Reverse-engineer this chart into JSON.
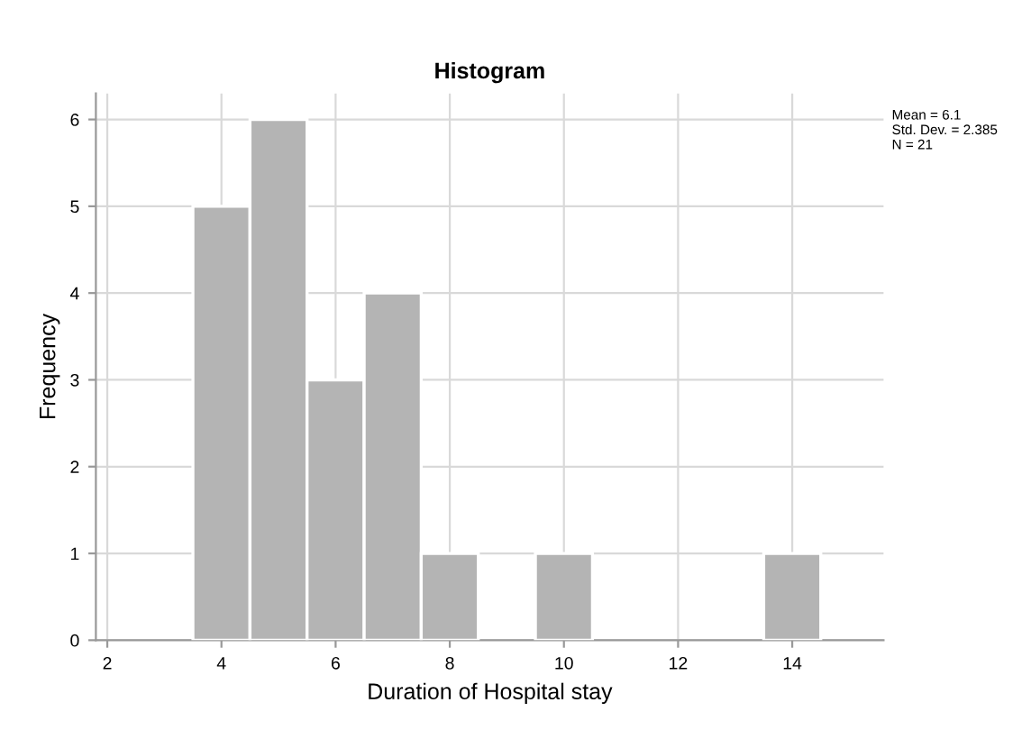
{
  "chart_data": {
    "type": "histogram",
    "title": "Histogram",
    "xlabel": "Duration of Hospital stay",
    "ylabel": "Frequency",
    "bins": [
      3.5,
      4.5,
      5.5,
      6.5,
      7.5,
      8.5,
      9.5,
      10.5,
      11.5,
      12.5,
      13.5,
      14.5
    ],
    "values": [
      5,
      6,
      3,
      4,
      1,
      0,
      1,
      0,
      0,
      0,
      1
    ],
    "color": "#b4b4b4",
    "xlim": [
      1.8,
      15.6
    ],
    "xticks": [
      2,
      4,
      6,
      8,
      10,
      12,
      14
    ],
    "ylim": [
      0,
      6.3
    ],
    "yticks": [
      0,
      1,
      2,
      3,
      4,
      5,
      6
    ],
    "grid": true,
    "annotations": [
      "Mean = 6.1\nStd. Dev. = 2.385\nN = 21"
    ]
  }
}
